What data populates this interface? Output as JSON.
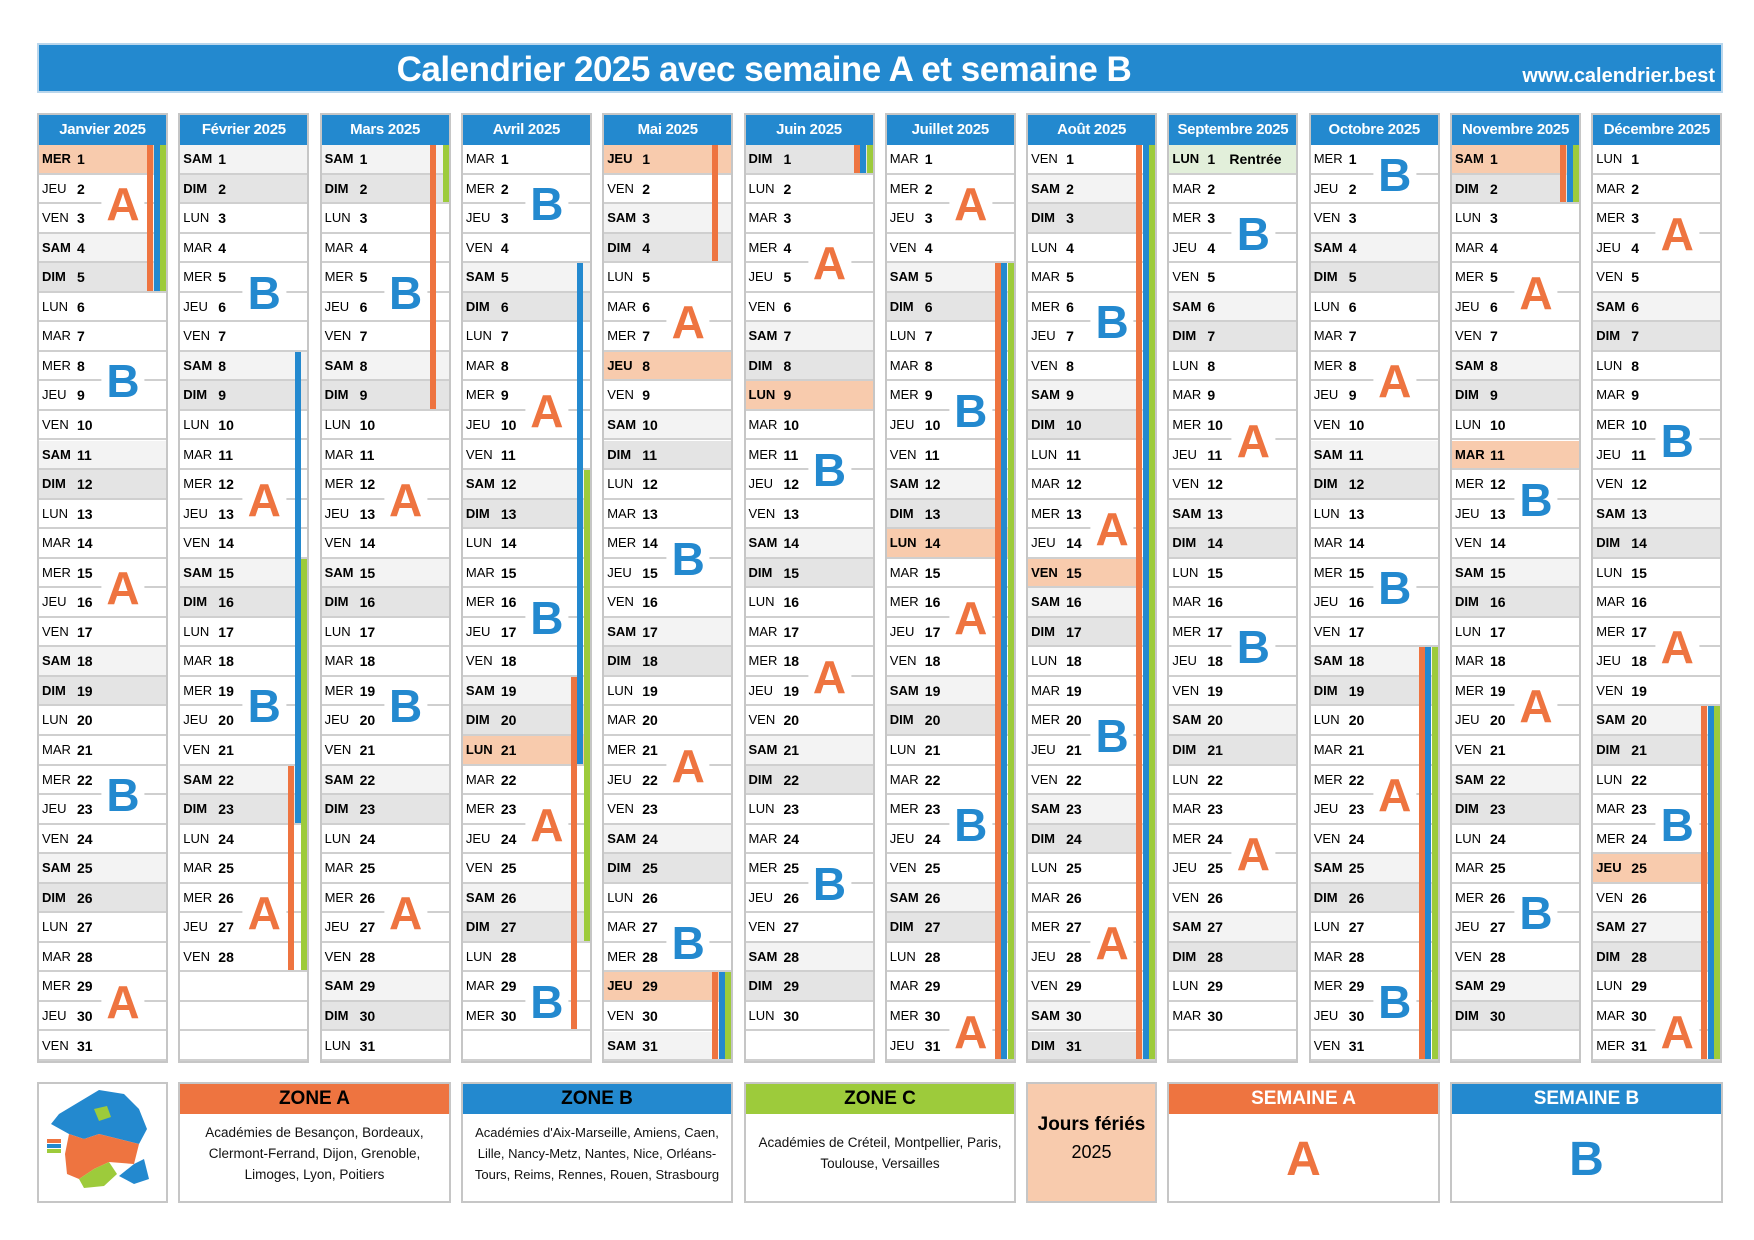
{
  "title": "Calendrier 2025 avec semaine A et semaine B",
  "url": "www.calendrier.best",
  "weekday_names": [
    "LUN",
    "MAR",
    "MER",
    "JEU",
    "VEN",
    "SAM",
    "DIM"
  ],
  "colors": {
    "zone_a": "#ee7440",
    "zone_b": "#2389cf",
    "zone_c": "#9dcb3b",
    "holiday": "#f8cbad",
    "rentree": "#e2efda",
    "header": "#2389cf"
  },
  "months": [
    {
      "name": "Janvier 2025",
      "first": 2,
      "days": 31,
      "weeks": [
        [
          "A",
          2
        ],
        [
          "B",
          8
        ],
        [
          "A",
          15
        ],
        [
          "B",
          22
        ],
        [
          "A",
          29
        ]
      ],
      "holidays": [
        1
      ],
      "vac": {
        "A": [
          [
            1,
            5
          ]
        ],
        "B": [
          [
            1,
            5
          ]
        ],
        "C": [
          [
            1,
            5
          ]
        ]
      }
    },
    {
      "name": "Février 2025",
      "first": 5,
      "days": 28,
      "weeks": [
        [
          "B",
          5
        ],
        [
          "A",
          12
        ],
        [
          "B",
          19
        ],
        [
          "A",
          26
        ]
      ],
      "holidays": [],
      "vac": {
        "A": [
          [
            22,
            28
          ]
        ],
        "B": [
          [
            8,
            23
          ]
        ],
        "C": [
          [
            15,
            28
          ]
        ]
      }
    },
    {
      "name": "Mars 2025",
      "first": 5,
      "days": 31,
      "weeks": [
        [
          "B",
          5
        ],
        [
          "A",
          12
        ],
        [
          "B",
          19
        ],
        [
          "A",
          26
        ]
      ],
      "holidays": [],
      "vac": {
        "A": [
          [
            1,
            9
          ]
        ],
        "B": [],
        "C": [
          [
            1,
            2
          ]
        ]
      }
    },
    {
      "name": "Avril 2025",
      "first": 1,
      "days": 30,
      "weeks": [
        [
          "B",
          2
        ],
        [
          "A",
          9
        ],
        [
          "B",
          16
        ],
        [
          "A",
          23
        ],
        [
          "B",
          29
        ]
      ],
      "holidays": [
        21
      ],
      "vac": {
        "A": [
          [
            19,
            30
          ]
        ],
        "B": [
          [
            5,
            21
          ]
        ],
        "C": [
          [
            12,
            27
          ]
        ]
      }
    },
    {
      "name": "Mai 2025",
      "first": 3,
      "days": 31,
      "weeks": [
        [
          "A",
          6
        ],
        [
          "B",
          14
        ],
        [
          "A",
          21
        ],
        [
          "B",
          27
        ]
      ],
      "holidays": [
        1,
        8,
        29
      ],
      "vac": {
        "A": [
          [
            1,
            4
          ],
          [
            29,
            31
          ]
        ],
        "B": [
          [
            29,
            31
          ]
        ],
        "C": [
          [
            29,
            31
          ]
        ]
      }
    },
    {
      "name": "Juin 2025",
      "first": 6,
      "days": 30,
      "weeks": [
        [
          "A",
          4
        ],
        [
          "B",
          11
        ],
        [
          "A",
          18
        ],
        [
          "B",
          25
        ]
      ],
      "holidays": [
        9
      ],
      "vac": {
        "A": [
          [
            1,
            1
          ]
        ],
        "B": [
          [
            1,
            1
          ]
        ],
        "C": [
          [
            1,
            1
          ]
        ]
      }
    },
    {
      "name": "Juillet 2025",
      "first": 1,
      "days": 31,
      "weeks": [
        [
          "A",
          2
        ],
        [
          "B",
          9
        ],
        [
          "A",
          16
        ],
        [
          "B",
          23
        ],
        [
          "A",
          30
        ]
      ],
      "holidays": [
        14
      ],
      "vac": {
        "A": [
          [
            5,
            31
          ]
        ],
        "B": [
          [
            5,
            31
          ]
        ],
        "C": [
          [
            5,
            31
          ]
        ]
      }
    },
    {
      "name": "Août 2025",
      "first": 4,
      "days": 31,
      "weeks": [
        [
          "B",
          6
        ],
        [
          "A",
          13
        ],
        [
          "B",
          20
        ],
        [
          "A",
          27
        ]
      ],
      "holidays": [
        15
      ],
      "vac": {
        "A": [
          [
            1,
            31
          ]
        ],
        "B": [
          [
            1,
            31
          ]
        ],
        "C": [
          [
            1,
            31
          ]
        ]
      }
    },
    {
      "name": "Septembre 2025",
      "first": 0,
      "days": 30,
      "weeks": [
        [
          "B",
          3
        ],
        [
          "A",
          10
        ],
        [
          "B",
          17
        ],
        [
          "A",
          24
        ]
      ],
      "holidays": [],
      "notes": {
        "1": "Rentrée"
      },
      "vac": {
        "A": [],
        "B": [],
        "C": []
      }
    },
    {
      "name": "Octobre 2025",
      "first": 2,
      "days": 31,
      "weeks": [
        [
          "B",
          1
        ],
        [
          "A",
          8
        ],
        [
          "B",
          15
        ],
        [
          "A",
          22
        ],
        [
          "B",
          29
        ]
      ],
      "holidays": [],
      "vac": {
        "A": [
          [
            18,
            31
          ]
        ],
        "B": [
          [
            18,
            31
          ]
        ],
        "C": [
          [
            18,
            31
          ]
        ]
      }
    },
    {
      "name": "Novembre 2025",
      "first": 5,
      "days": 30,
      "weeks": [
        [
          "A",
          5
        ],
        [
          "B",
          12
        ],
        [
          "A",
          19
        ],
        [
          "B",
          26
        ]
      ],
      "holidays": [
        1,
        11
      ],
      "vac": {
        "A": [
          [
            1,
            2
          ]
        ],
        "B": [
          [
            1,
            2
          ]
        ],
        "C": [
          [
            1,
            2
          ]
        ]
      }
    },
    {
      "name": "Décembre 2025",
      "first": 0,
      "days": 31,
      "weeks": [
        [
          "A",
          3
        ],
        [
          "B",
          10
        ],
        [
          "A",
          17
        ],
        [
          "B",
          23
        ],
        [
          "A",
          30
        ]
      ],
      "holidays": [
        25
      ],
      "vac": {
        "A": [
          [
            20,
            31
          ]
        ],
        "B": [
          [
            20,
            31
          ]
        ],
        "C": [
          [
            20,
            31
          ]
        ]
      }
    }
  ],
  "legend": {
    "map_labels": [
      "Zone A",
      "Zone B",
      "Zone C"
    ],
    "zone_a": {
      "title": "ZONE A",
      "text": "Académies de Besançon, Bordeaux, Clermont-Ferrand, Dijon, Grenoble, Limoges, Lyon, Poitiers"
    },
    "zone_b": {
      "title": "ZONE B",
      "text": "Académies d'Aix-Marseille, Amiens, Caen, Lille, Nancy-Metz, Nantes, Nice, Orléans-Tours, Reims, Rennes, Rouen, Strasbourg"
    },
    "zone_c": {
      "title": "ZONE C",
      "text": "Académies de Créteil, Montpellier, Paris, Toulouse, Versailles"
    },
    "holidays": {
      "title": "Jours fériés",
      "year": "2025"
    },
    "week_a": {
      "title": "SEMAINE A",
      "letter": "A"
    },
    "week_b": {
      "title": "SEMAINE B",
      "letter": "B"
    }
  }
}
